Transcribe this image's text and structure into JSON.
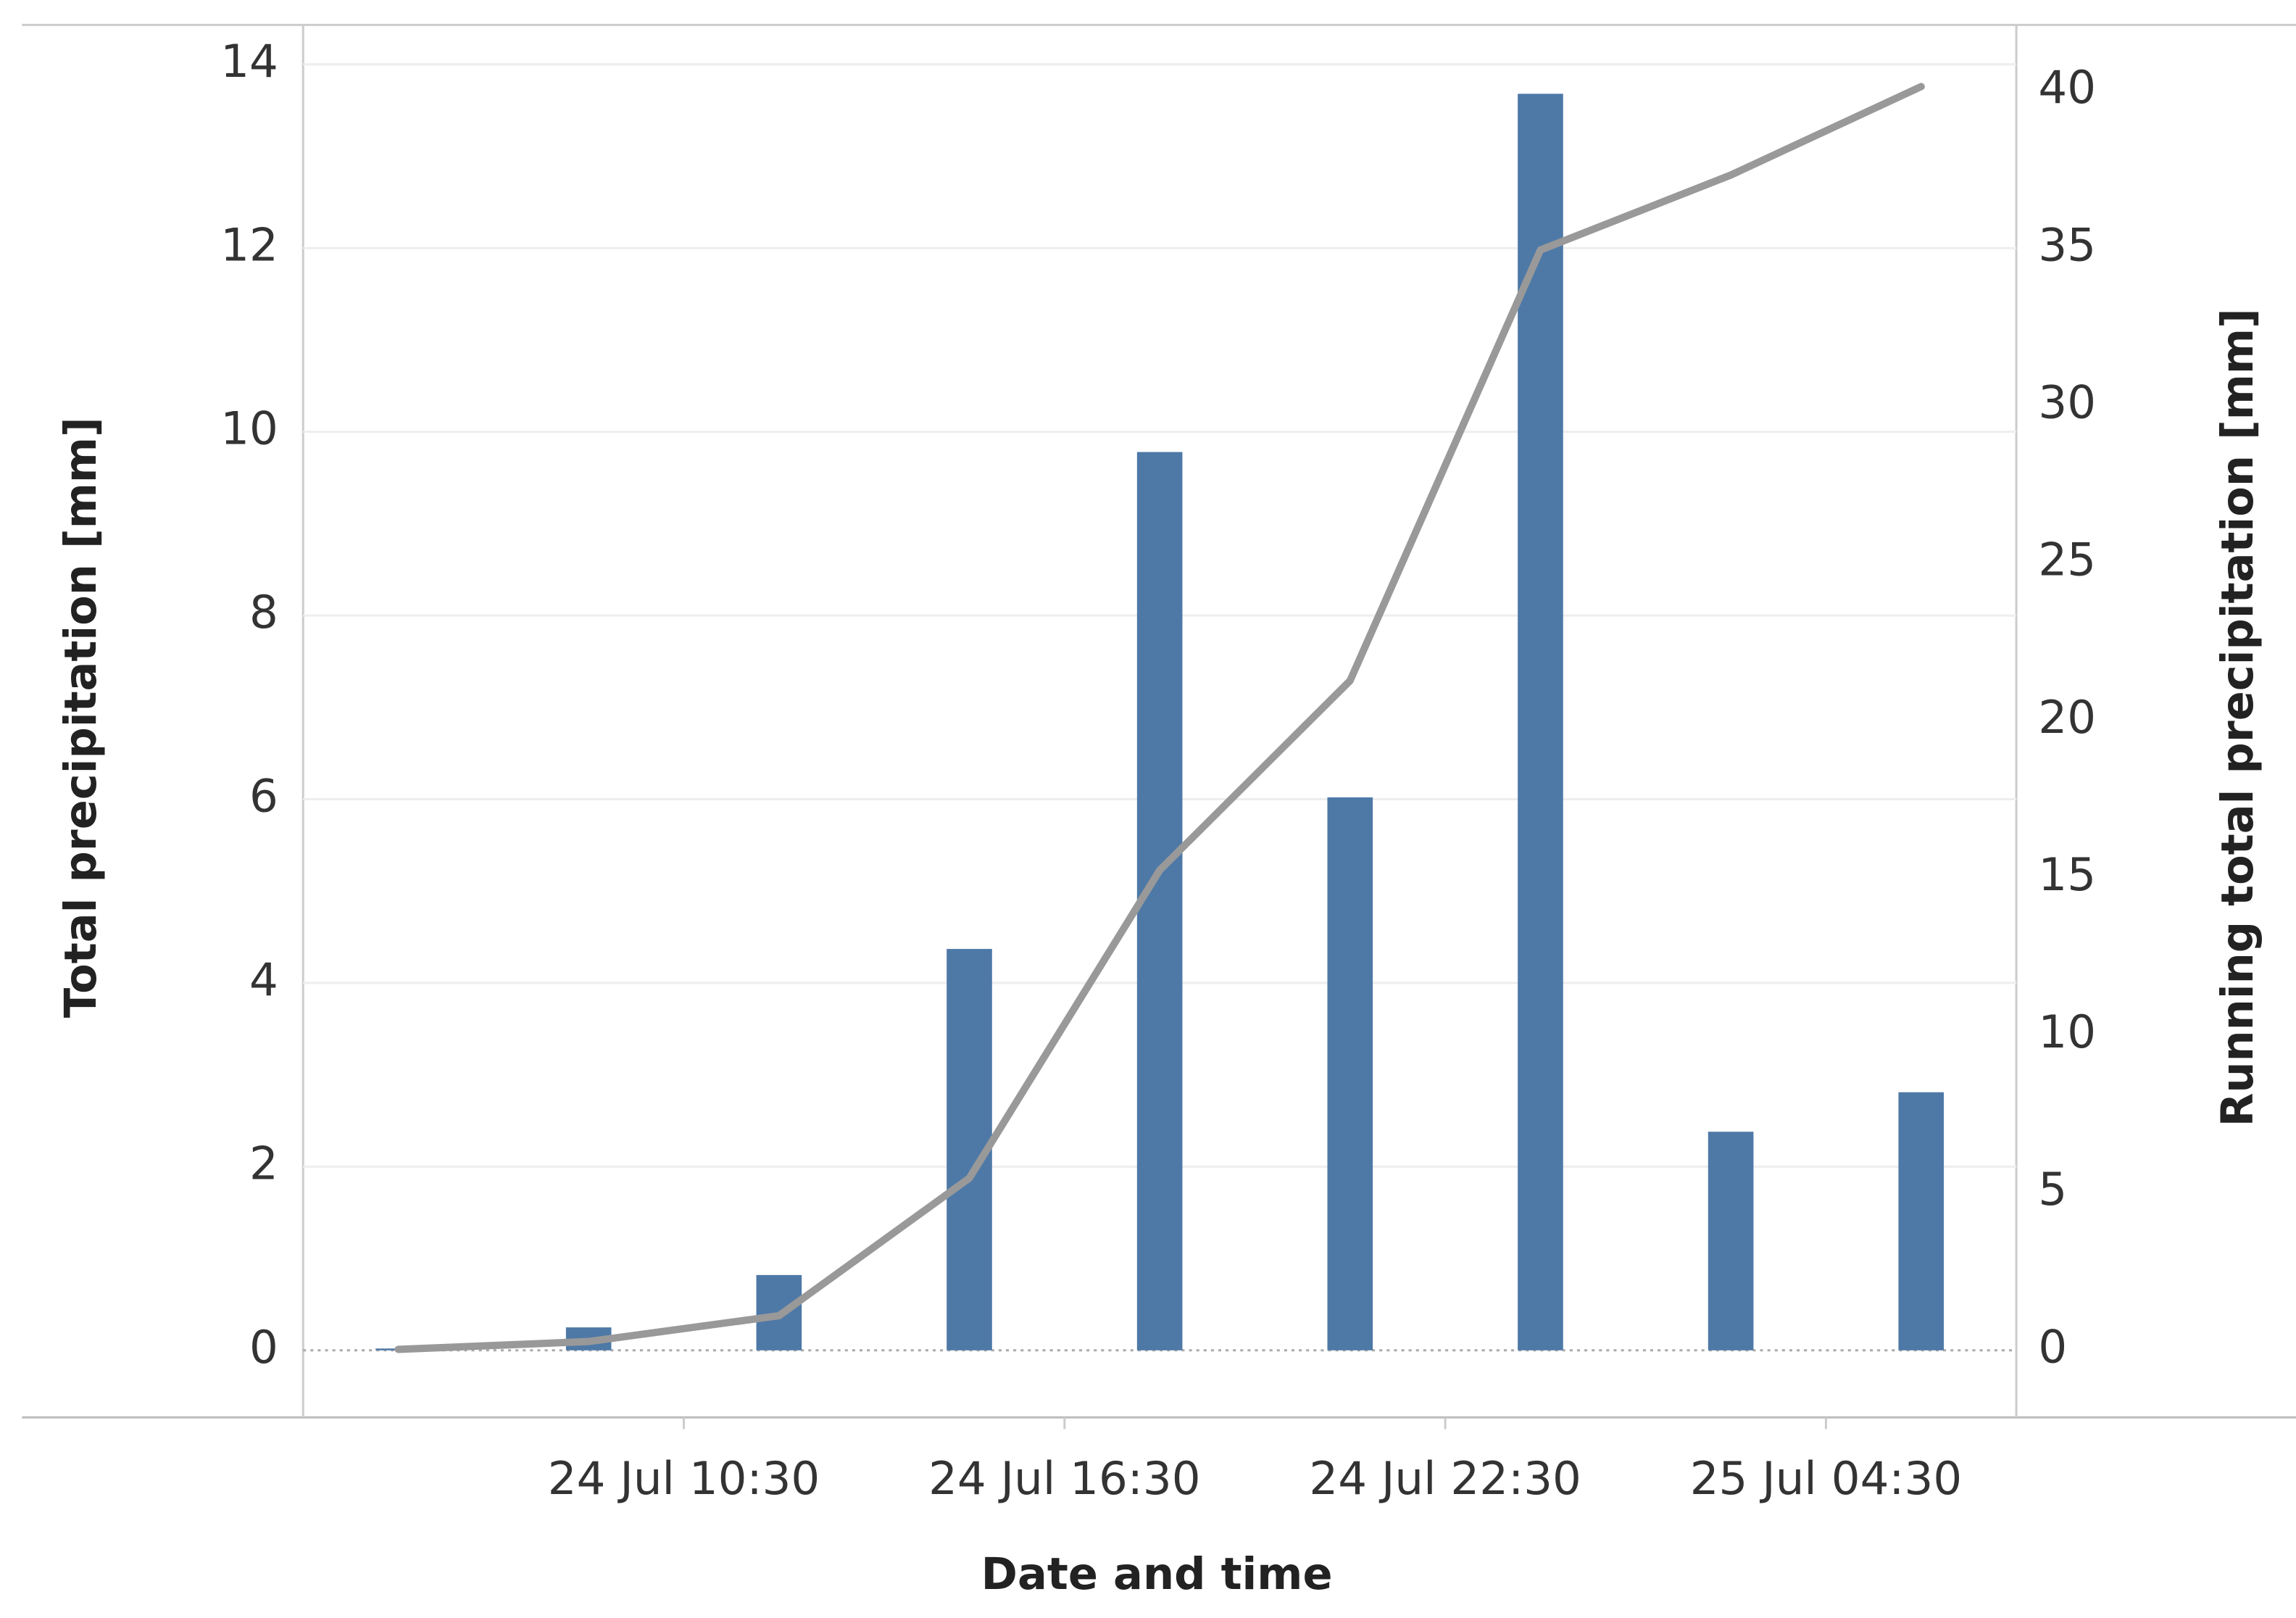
{
  "chart_data": {
    "type": "bar-line",
    "x_label": "Date and time",
    "y_label": "Total precipitation [mm]",
    "y2_label": "Running total precipitation [mm]",
    "x": [
      "24 Jul 06:00",
      "24 Jul 09:00",
      "24 Jul 12:00",
      "24 Jul 15:00",
      "24 Jul 18:00",
      "24 Jul 21:00",
      "25 Jul 00:00",
      "25 Jul 03:00",
      "25 Jul 06:00"
    ],
    "xlim": [
      "24 Jul 04:30",
      "25 Jul 07:30"
    ],
    "xticks": [
      "24 Jul 10:30",
      "24 Jul 16:30",
      "24 Jul 22:30",
      "25 Jul 04:30"
    ],
    "series": [
      {
        "name": "Total precipitation",
        "type": "bar",
        "color": "#4e79a7",
        "values": [
          0.02,
          0.25,
          0.82,
          4.37,
          9.78,
          6.02,
          13.68,
          2.38,
          2.81
        ]
      },
      {
        "name": "Running total precipitation",
        "type": "line",
        "axis": "y2",
        "color": "#999999",
        "values": [
          0.02,
          0.27,
          1.09,
          5.46,
          15.24,
          21.26,
          34.94,
          37.32,
          40.13
        ]
      }
    ],
    "ylim": [
      -0.73,
      14.43
    ],
    "yticks": [
      0,
      2,
      4,
      6,
      8,
      10,
      12,
      14
    ],
    "y2lim": [
      -2.14,
      42.09
    ],
    "y2ticks": [
      0,
      5,
      10,
      15,
      20,
      25,
      30,
      35,
      40
    ],
    "grid": true
  }
}
